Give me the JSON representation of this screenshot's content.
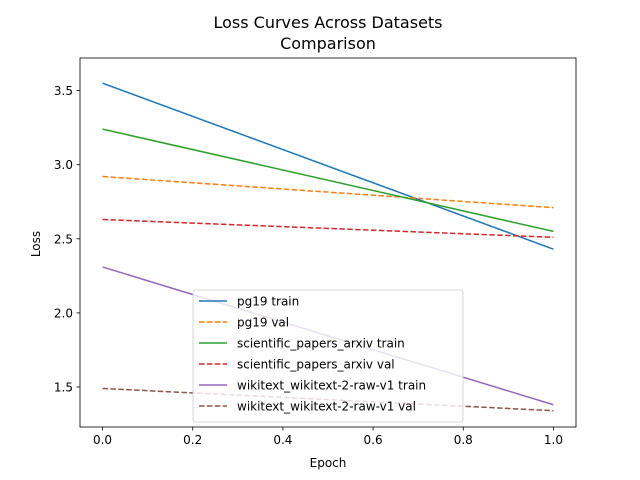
{
  "chart_data": {
    "type": "line",
    "title_lines": [
      "Loss Curves Across Datasets",
      "Comparison"
    ],
    "xlabel": "Epoch",
    "ylabel": "Loss",
    "xlim": [
      -0.05,
      1.05
    ],
    "ylim": [
      1.23,
      3.72
    ],
    "xticks": [
      0.0,
      0.2,
      0.4,
      0.6,
      0.8,
      1.0
    ],
    "xtick_labels": [
      "0.0",
      "0.2",
      "0.4",
      "0.6",
      "0.8",
      "1.0"
    ],
    "yticks": [
      1.5,
      2.0,
      2.5,
      3.0,
      3.5
    ],
    "ytick_labels": [
      "1.5",
      "2.0",
      "2.5",
      "3.0",
      "3.5"
    ],
    "grid": false,
    "legend_position": "lower-center",
    "x": [
      0.0,
      1.0
    ],
    "series": [
      {
        "name": "pg19 train",
        "values": [
          3.55,
          2.43
        ],
        "color": "#1f77b4",
        "style": "solid"
      },
      {
        "name": "pg19 val",
        "values": [
          2.92,
          2.71
        ],
        "color": "#ff7f0e",
        "style": "dashed"
      },
      {
        "name": "scientific_papers_arxiv train",
        "values": [
          3.24,
          2.55
        ],
        "color": "#2ca02c",
        "style": "solid"
      },
      {
        "name": "scientific_papers_arxiv val",
        "values": [
          2.63,
          2.51
        ],
        "color": "#d62728",
        "style": "dashed"
      },
      {
        "name": "wikitext_wikitext-2-raw-v1 train",
        "values": [
          2.31,
          1.38
        ],
        "color": "#9467bd",
        "style": "solid"
      },
      {
        "name": "wikitext_wikitext-2-raw-v1 val",
        "values": [
          1.49,
          1.34
        ],
        "color": "#8c564b",
        "style": "dashed"
      }
    ]
  }
}
